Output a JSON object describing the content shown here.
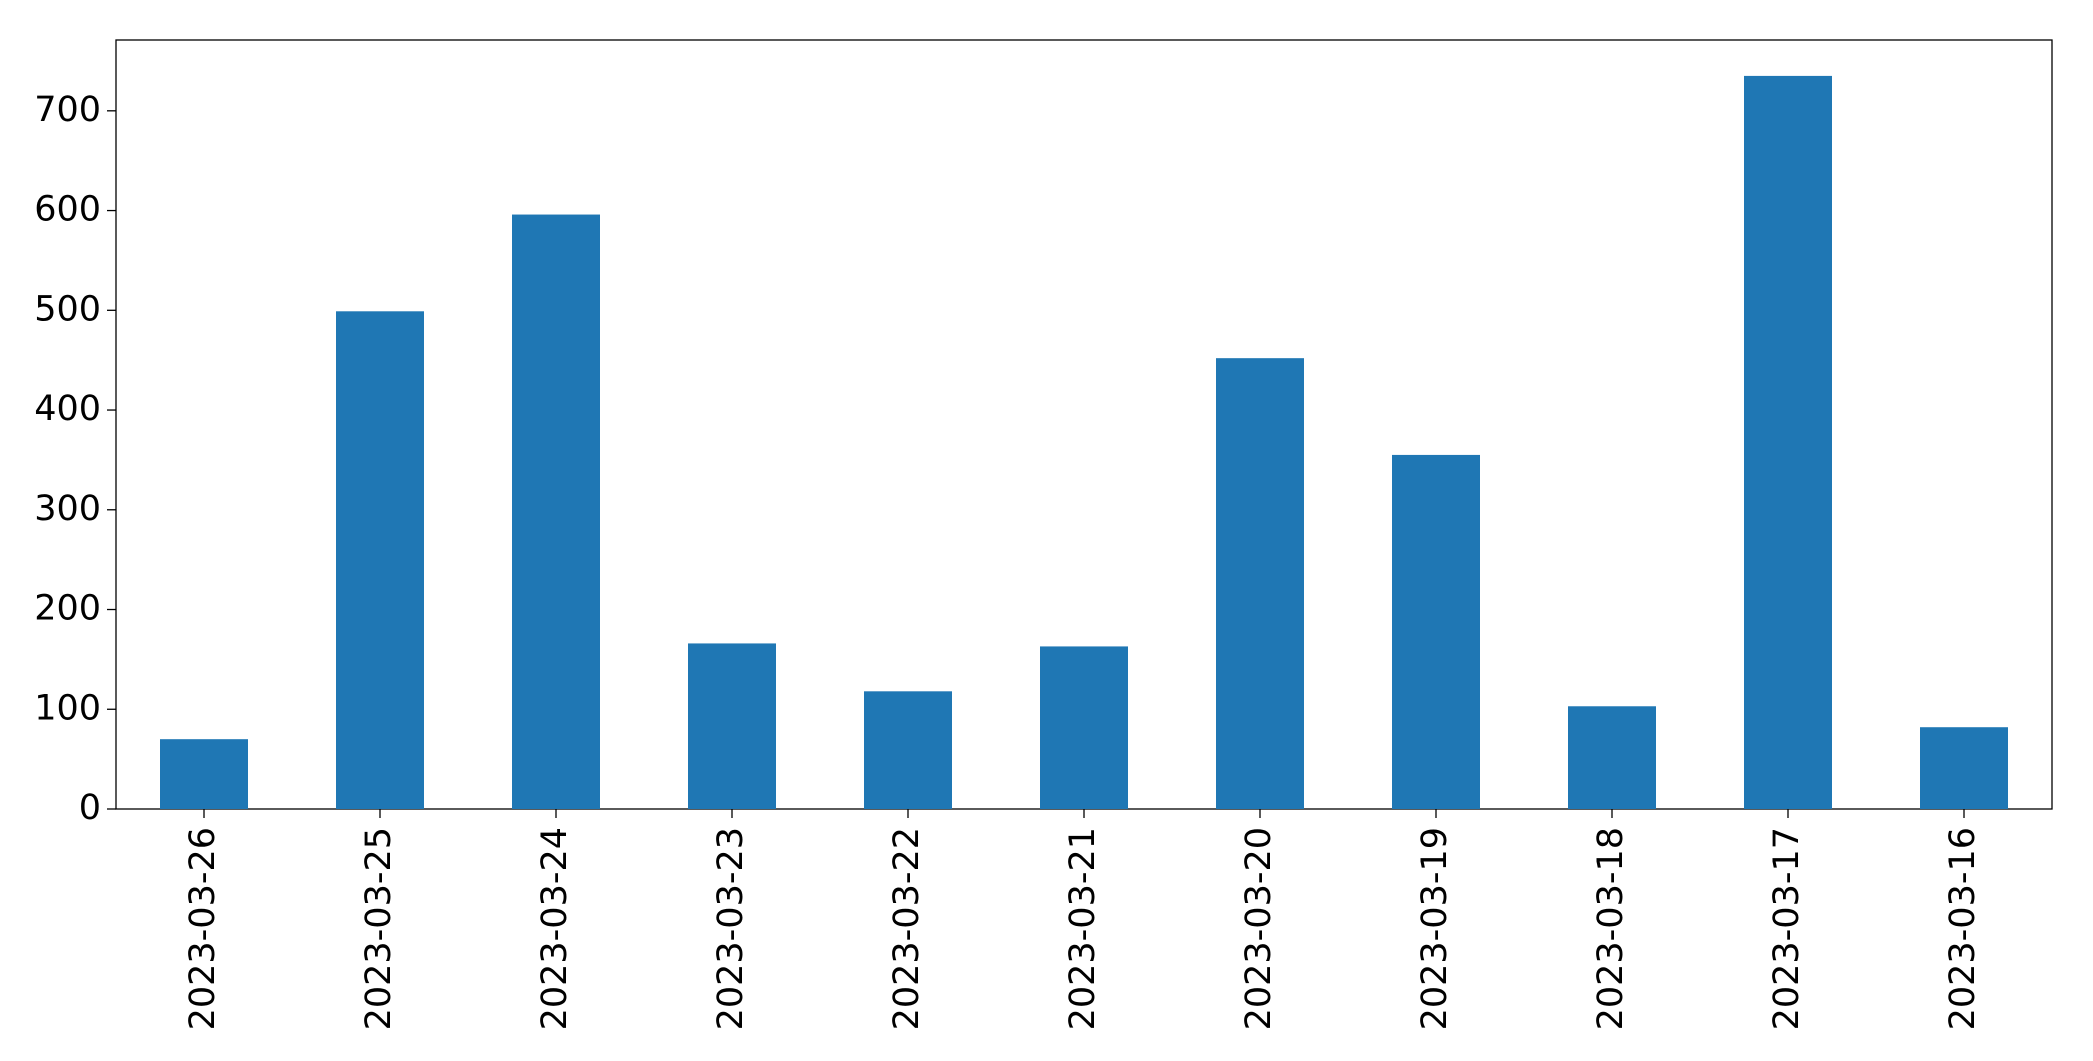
{
  "chart_data": {
    "type": "bar",
    "categories": [
      "2023-03-26",
      "2023-03-25",
      "2023-03-24",
      "2023-03-23",
      "2023-03-22",
      "2023-03-21",
      "2023-03-20",
      "2023-03-19",
      "2023-03-18",
      "2023-03-17",
      "2023-03-16"
    ],
    "values": [
      70,
      499,
      596,
      166,
      118,
      163,
      452,
      355,
      103,
      735,
      82
    ],
    "color": "#1f77b4",
    "ylim": [
      0,
      771
    ],
    "yticks": [
      0,
      100,
      200,
      300,
      400,
      500,
      600,
      700
    ],
    "grid": false
  }
}
